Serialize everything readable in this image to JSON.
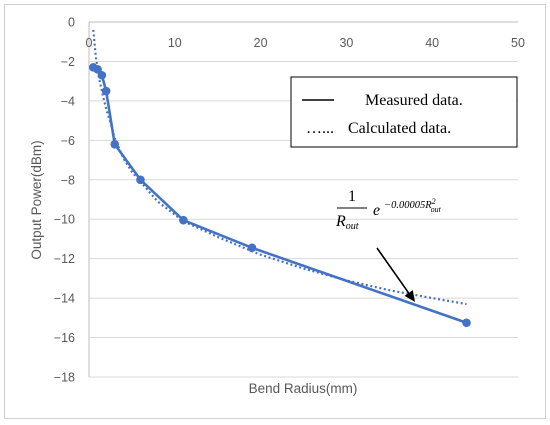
{
  "chart_data": {
    "type": "line",
    "title": "",
    "xlabel": "Bend Radius(mm)",
    "ylabel": "Output Power(dBm)",
    "xlim": [
      0,
      50
    ],
    "ylim": [
      -18,
      0
    ],
    "x_ticks": [
      0,
      10,
      20,
      30,
      40,
      50
    ],
    "y_ticks": [
      0,
      -2,
      -4,
      -6,
      -8,
      -10,
      -12,
      -14,
      -16,
      -18
    ],
    "grid": "horizontal",
    "legend_position": "top-right",
    "series": [
      {
        "name": "Measured data.",
        "style": "solid",
        "markers": true,
        "color": "#4472c4",
        "x": [
          0.5,
          1,
          1.5,
          2,
          3,
          6,
          11,
          19,
          44
        ],
        "y": [
          -2.3,
          -2.4,
          -2.7,
          -3.5,
          -6.2,
          -8.0,
          -10.05,
          -11.45,
          -15.25
        ]
      },
      {
        "name": "Calculated data.",
        "legend_prefix": "…...",
        "style": "dotted",
        "markers": false,
        "color": "#4472c4",
        "x": [
          0.5,
          0.8,
          1.2,
          1.6,
          2,
          2.5,
          3,
          4,
          5,
          6,
          8,
          11,
          15,
          20,
          25,
          30,
          35,
          40,
          44
        ],
        "y": [
          -0.4,
          -1.8,
          -2.9,
          -3.7,
          -4.4,
          -5.1,
          -5.9,
          -6.9,
          -7.6,
          -8.1,
          -9.1,
          -10.1,
          -10.9,
          -11.8,
          -12.5,
          -13.1,
          -13.6,
          -14.0,
          -14.3
        ]
      }
    ],
    "annotation": {
      "numerator": "1",
      "denominator": "R",
      "denominator_sub": "out",
      "exp_base": "e",
      "exponent": "−0.00005R",
      "exponent_sup": "2",
      "exponent_sub": "out",
      "arrow_target": {
        "x": 38,
        "y": -14.2
      }
    }
  }
}
